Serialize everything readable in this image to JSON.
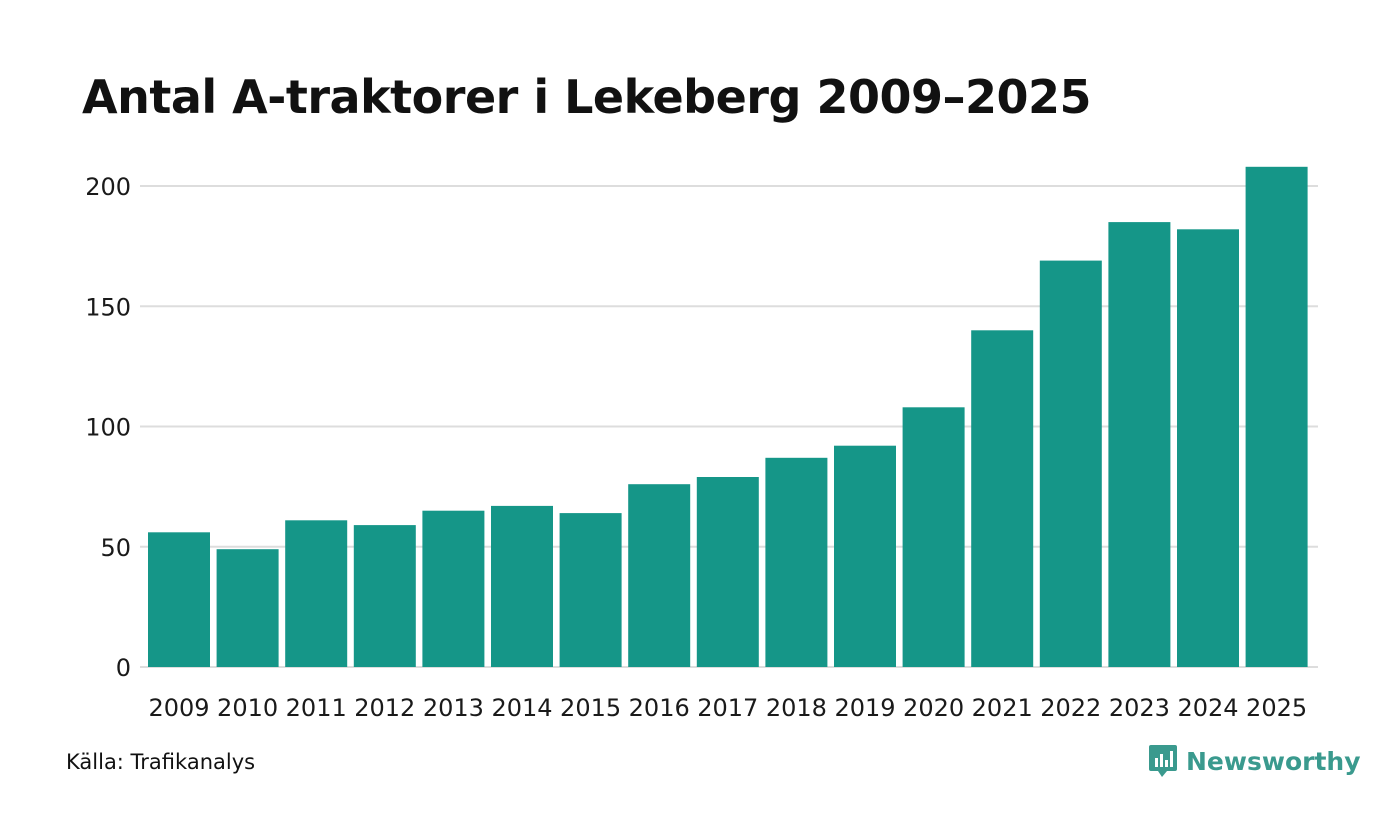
{
  "chart_data": {
    "type": "bar",
    "title": "Antal A-traktorer i Lekeberg 2009–2025",
    "categories": [
      "2009",
      "2010",
      "2011",
      "2012",
      "2013",
      "2014",
      "2015",
      "2016",
      "2017",
      "2018",
      "2019",
      "2020",
      "2021",
      "2022",
      "2023",
      "2024",
      "2025"
    ],
    "values": [
      56,
      49,
      61,
      59,
      65,
      67,
      64,
      76,
      79,
      87,
      92,
      108,
      140,
      169,
      185,
      182,
      208
    ],
    "yticks": [
      0,
      50,
      100,
      150,
      200
    ],
    "ylim": [
      0,
      208
    ],
    "xlabel": "",
    "ylabel": "",
    "grid": true,
    "bar_color": "#159688"
  },
  "source": "Källa: Trafikanalys",
  "brand": {
    "name": "Newsworthy",
    "icon": "newsworthy-logo-icon",
    "color": "#3a9a8e"
  }
}
